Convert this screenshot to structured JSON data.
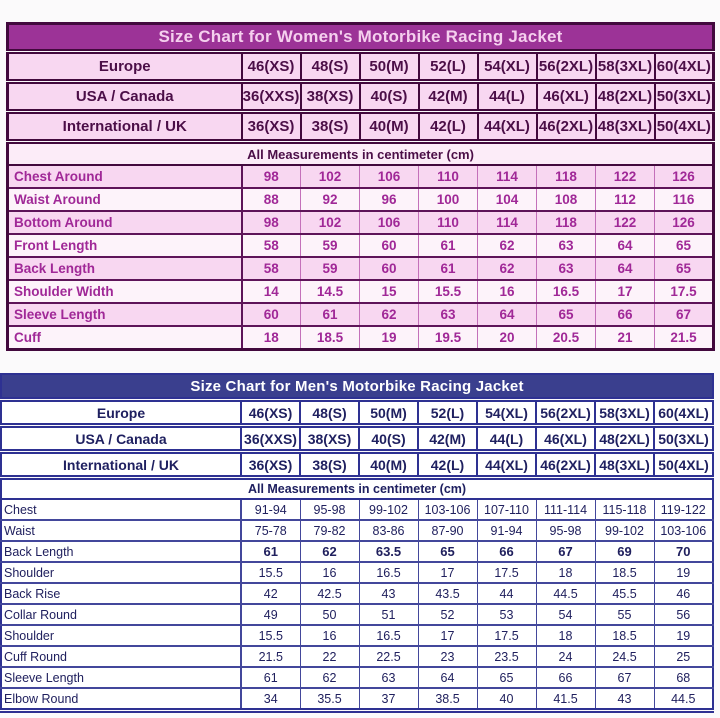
{
  "women_table": {
    "title": "Size Chart for Women's Motorbike Racing Jacket",
    "note": "All Measurements in centimeter (cm)",
    "size_rows": [
      {
        "label": "Europe",
        "values": [
          "46(XS)",
          "48(S)",
          "50(M)",
          "52(L)",
          "54(XL)",
          "56(2XL)",
          "58(3XL)",
          "60(4XL)"
        ]
      },
      {
        "label": "USA / Canada",
        "values": [
          "36(XXS)",
          "38(XS)",
          "40(S)",
          "42(M)",
          "44(L)",
          "46(XL)",
          "48(2XL)",
          "50(3XL)"
        ]
      },
      {
        "label": "International / UK",
        "values": [
          "36(XS)",
          "38(S)",
          "40(M)",
          "42(L)",
          "44(XL)",
          "46(2XL)",
          "48(3XL)",
          "50(4XL)"
        ]
      }
    ],
    "measurement_rows": [
      {
        "label": "Chest Around",
        "values": [
          "98",
          "102",
          "106",
          "110",
          "114",
          "118",
          "122",
          "126"
        ]
      },
      {
        "label": "Waist Around",
        "values": [
          "88",
          "92",
          "96",
          "100",
          "104",
          "108",
          "112",
          "116"
        ]
      },
      {
        "label": "Bottom Around",
        "values": [
          "98",
          "102",
          "106",
          "110",
          "114",
          "118",
          "122",
          "126"
        ]
      },
      {
        "label": "Front Length",
        "values": [
          "58",
          "59",
          "60",
          "61",
          "62",
          "63",
          "64",
          "65"
        ]
      },
      {
        "label": "Back Length",
        "values": [
          "58",
          "59",
          "60",
          "61",
          "62",
          "63",
          "64",
          "65"
        ]
      },
      {
        "label": "Shoulder Width",
        "values": [
          "14",
          "14.5",
          "15",
          "15.5",
          "16",
          "16.5",
          "17",
          "17.5"
        ]
      },
      {
        "label": "Sleeve Length",
        "values": [
          "60",
          "61",
          "62",
          "63",
          "64",
          "65",
          "66",
          "67"
        ]
      },
      {
        "label": "Cuff",
        "values": [
          "18",
          "18.5",
          "19",
          "19.5",
          "20",
          "20.5",
          "21",
          "21.5"
        ]
      }
    ],
    "colors": {
      "title_bg": "#9c3397",
      "title_text": "#f5d0ee",
      "border_dark": "#42093d",
      "row_pink": "#f8d7f1",
      "row_light": "#fdf3fa",
      "header_text": "#4b0e47",
      "value_text": "#a02897"
    }
  },
  "men_table": {
    "title": "Size Chart for Men's Motorbike Racing Jacket",
    "note": "All Measurements in centimeter (cm)",
    "size_rows": [
      {
        "label": "Europe",
        "values": [
          "46(XS)",
          "48(S)",
          "50(M)",
          "52(L)",
          "54(XL)",
          "56(2XL)",
          "58(3XL)",
          "60(4XL)"
        ]
      },
      {
        "label": "USA / Canada",
        "values": [
          "36(XXS)",
          "38(XS)",
          "40(S)",
          "42(M)",
          "44(L)",
          "46(XL)",
          "48(2XL)",
          "50(3XL)"
        ]
      },
      {
        "label": "International / UK",
        "values": [
          "36(XS)",
          "38(S)",
          "40(M)",
          "42(L)",
          "44(XL)",
          "46(2XL)",
          "48(3XL)",
          "50(4XL)"
        ]
      }
    ],
    "measurement_rows": [
      {
        "label": "Chest",
        "values": [
          "91-94",
          "95-98",
          "99-102",
          "103-106",
          "107-110",
          "111-114",
          "115-118",
          "119-122"
        ]
      },
      {
        "label": "Waist",
        "values": [
          "75-78",
          "79-82",
          "83-86",
          "87-90",
          "91-94",
          "95-98",
          "99-102",
          "103-106"
        ]
      },
      {
        "label": "Back Length",
        "bold": true,
        "values": [
          "61",
          "62",
          "63.5",
          "65",
          "66",
          "67",
          "69",
          "70"
        ]
      },
      {
        "label": "Shoulder",
        "values": [
          "15.5",
          "16",
          "16.5",
          "17",
          "17.5",
          "18",
          "18.5",
          "19"
        ]
      },
      {
        "label": "Back Rise",
        "values": [
          "42",
          "42.5",
          "43",
          "43.5",
          "44",
          "44.5",
          "45.5",
          "46"
        ]
      },
      {
        "label": "Collar Round",
        "values": [
          "49",
          "50",
          "51",
          "52",
          "53",
          "54",
          "55",
          "56"
        ]
      },
      {
        "label": "Shoulder",
        "values": [
          "15.5",
          "16",
          "16.5",
          "17",
          "17.5",
          "18",
          "18.5",
          "19"
        ]
      },
      {
        "label": "Cuff Round",
        "values": [
          "21.5",
          "22",
          "22.5",
          "23",
          "23.5",
          "24",
          "24.5",
          "25"
        ]
      },
      {
        "label": "Sleeve Length",
        "values": [
          "61",
          "62",
          "63",
          "64",
          "65",
          "66",
          "67",
          "68"
        ]
      },
      {
        "label": "Elbow Round",
        "values": [
          "34",
          "35.5",
          "37",
          "38.5",
          "40",
          "41.5",
          "43",
          "44.5"
        ]
      }
    ],
    "colors": {
      "title_bg": "#3a3f8e",
      "title_text": "#ffffff",
      "border": "#2e3192",
      "row_bg": "#ffffff",
      "text": "#1f2060"
    }
  }
}
